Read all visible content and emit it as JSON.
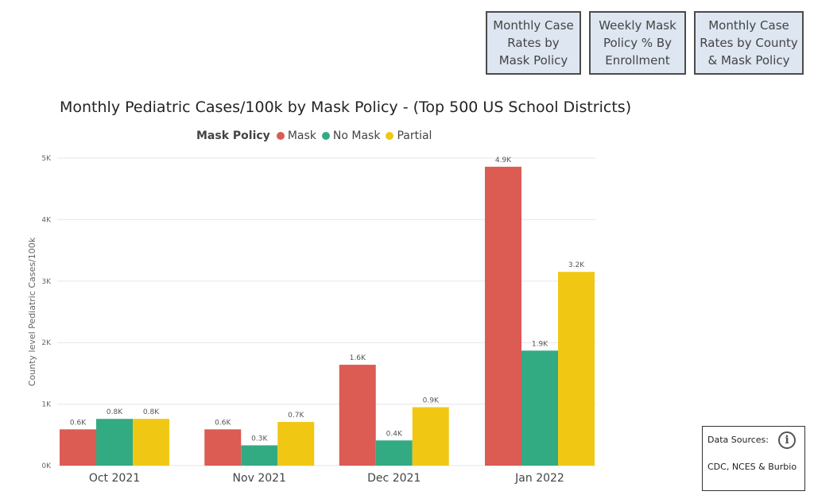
{
  "nav_buttons": [
    {
      "label": "Monthly Case Rates by Mask Policy"
    },
    {
      "label": "Weekly Mask Policy % By Enrollment"
    },
    {
      "label": "Monthly Case Rates by County & Mask Policy"
    }
  ],
  "colors": {
    "mask": "#dc5b53",
    "no_mask": "#33ab82",
    "partial": "#f0c814",
    "grid": "#e6e6e6",
    "text": "#252423"
  },
  "legend": {
    "title": "Mask Policy",
    "items": [
      {
        "label": "Mask",
        "color": "#dc5b53"
      },
      {
        "label": "No Mask",
        "color": "#33ab82"
      },
      {
        "label": "Partial",
        "color": "#f0c814"
      }
    ]
  },
  "data_sources": {
    "label": "Data Sources:",
    "text": "CDC, NCES & Burbio",
    "icon": "info-icon"
  },
  "chart_data": {
    "type": "bar",
    "title": "Monthly Pediatric Cases/100k by Mask Policy - (Top 500 US School Districts)",
    "xlabel": "",
    "ylabel": "County level Pediatric Cases/100k",
    "ylim": [
      0,
      5000
    ],
    "yticks": [
      0,
      1000,
      2000,
      3000,
      4000,
      5000
    ],
    "ytick_labels": [
      "0K",
      "1K",
      "2K",
      "3K",
      "4K",
      "5K"
    ],
    "grid": true,
    "legend_position": "top",
    "categories": [
      "Oct 2021",
      "Nov 2021",
      "Dec 2021",
      "Jan 2022"
    ],
    "series": [
      {
        "name": "Mask",
        "color": "#dc5b53",
        "values": [
          590,
          590,
          1640,
          4860
        ],
        "labels": [
          "0.6K",
          "0.6K",
          "1.6K",
          "4.9K"
        ]
      },
      {
        "name": "No Mask",
        "color": "#33ab82",
        "values": [
          760,
          330,
          410,
          1870
        ],
        "labels": [
          "0.8K",
          "0.3K",
          "0.4K",
          "1.9K"
        ]
      },
      {
        "name": "Partial",
        "color": "#f0c814",
        "values": [
          760,
          710,
          950,
          3150
        ],
        "labels": [
          "0.8K",
          "0.7K",
          "0.9K",
          "3.2K"
        ]
      }
    ]
  }
}
